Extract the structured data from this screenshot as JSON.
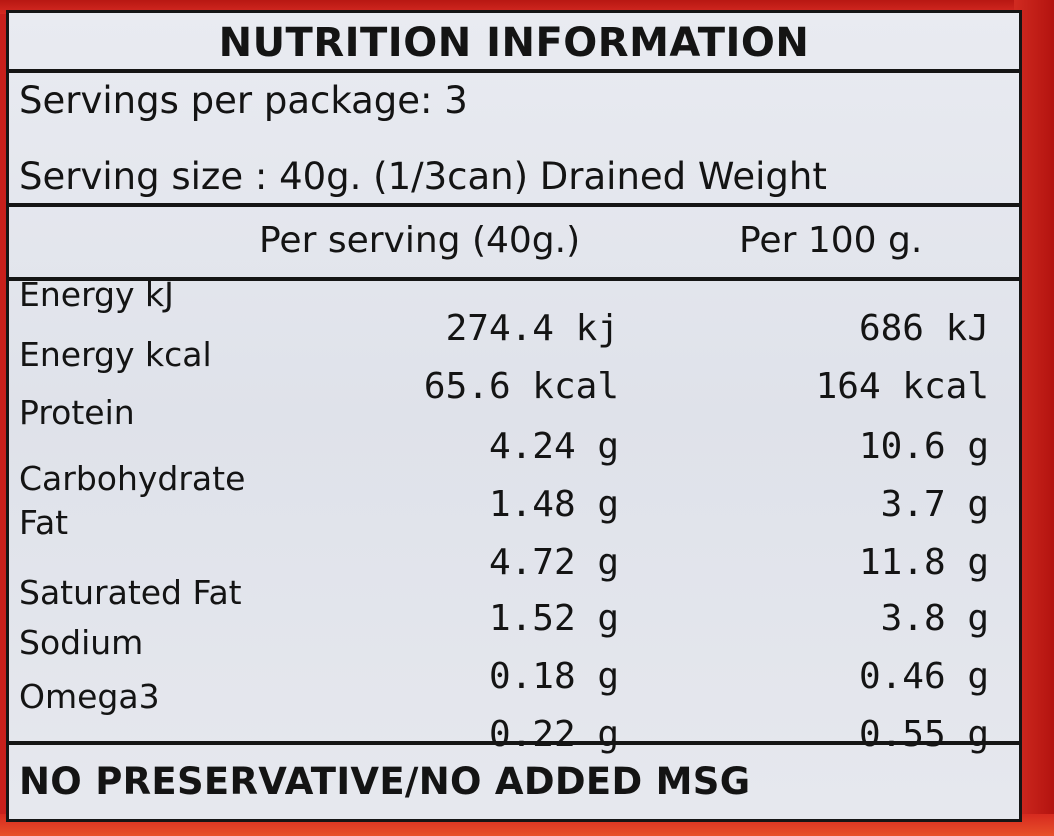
{
  "label": {
    "title": "NUTRITION INFORMATION",
    "servings_per_package": "Servings per package: 3",
    "serving_size": "Serving size : 40g. (1/3can) Drained Weight",
    "columns": {
      "per_serving": "Per serving (40g.)",
      "per_100g": "Per 100 g."
    },
    "nutrient_names": [
      "Energy kJ",
      "Energy kcal",
      "Protein",
      "Carbohydrate",
      "Fat",
      "Saturated Fat",
      "Sodium",
      "Omega3"
    ],
    "rows": [
      {
        "per_serving": "274.4 kj",
        "per_100g": "686 kJ"
      },
      {
        "per_serving": "65.6 kcal",
        "per_100g": "164 kcal"
      },
      {
        "per_serving": "4.24 g",
        "per_100g": "10.6 g"
      },
      {
        "per_serving": "1.48 g",
        "per_100g": "3.7 g"
      },
      {
        "per_serving": "4.72 g",
        "per_100g": "11.8 g"
      },
      {
        "per_serving": "1.52 g",
        "per_100g": "3.8 g"
      },
      {
        "per_serving": "0.18 g",
        "per_100g": "0.46 g"
      },
      {
        "per_serving": "0.22 g",
        "per_100g": "0.55 g"
      }
    ],
    "footer": "NO PRESERVATIVE/NO ADDED MSG"
  },
  "colors": {
    "can_red": "#c8201c",
    "label_background": "#e4e6ed",
    "ink": "#141414"
  }
}
